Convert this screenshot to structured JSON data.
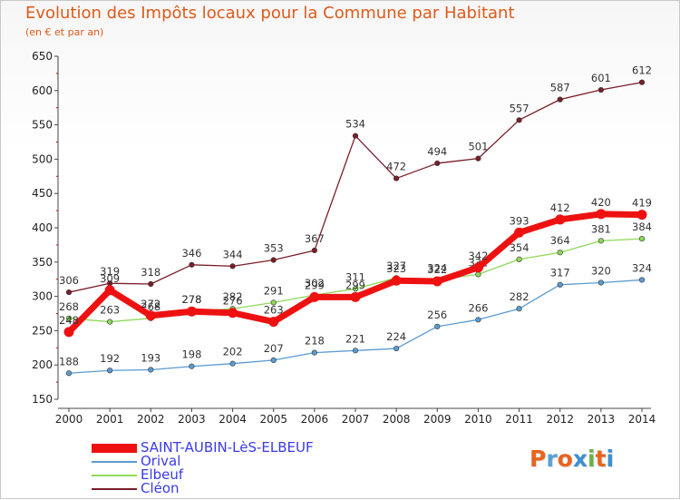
{
  "title": "Evolution des Impôts locaux pour la Commune par Habitant",
  "subtitle": "(en € et par an)",
  "logo": {
    "text": "Proxiti",
    "colors": [
      "#e8641e",
      "#5aa0d8",
      "#e8641e",
      "#3c8fd0",
      "#6ab04c",
      "#e8641e",
      "#3c8fd0"
    ]
  },
  "chart_data": {
    "type": "line",
    "title": "Evolution des Impôts locaux pour la Commune par Habitant",
    "subtitle": "(en € et par an)",
    "x": [
      "2000",
      "2001",
      "2002",
      "2003",
      "2004",
      "2005",
      "2006",
      "2007",
      "2008",
      "2009",
      "2010",
      "2011",
      "2012",
      "2013",
      "2014"
    ],
    "ylim": [
      150,
      650
    ],
    "yticks": [
      "150",
      "200",
      "250",
      "300",
      "350",
      "400",
      "450",
      "500",
      "550",
      "600",
      "650"
    ],
    "grid": false,
    "legend_position": "bottom-left",
    "series": [
      {
        "name": "Cléon",
        "color": "#7a1e28",
        "width": 1.3,
        "marker": 2.8,
        "values": [
          306,
          319,
          318,
          346,
          344,
          353,
          367,
          534,
          472,
          494,
          501,
          557,
          587,
          601,
          612
        ]
      },
      {
        "name": "Orival",
        "color": "#5b9bd0",
        "width": 1.3,
        "marker": 2.8,
        "values": [
          188,
          192,
          193,
          198,
          202,
          207,
          218,
          221,
          224,
          256,
          266,
          282,
          317,
          320,
          324
        ]
      },
      {
        "name": "Elbeuf",
        "color": "#8ed85a",
        "width": 1.3,
        "marker": 2.8,
        "values": [
          268,
          263,
          268,
          278,
          282,
          291,
          302,
          311,
          327,
          324,
          332,
          354,
          364,
          381,
          384
        ]
      },
      {
        "name": "SAINT-AUBIN-LèS-ELBEUF",
        "color": "#ee1111",
        "width": 7,
        "marker": 5.5,
        "values": [
          248,
          309,
          272,
          278,
          276,
          263,
          299,
          299,
          323,
          322,
          342,
          393,
          412,
          420,
          419
        ]
      }
    ]
  },
  "legend": [
    {
      "label": "SAINT-AUBIN-LèS-ELBEUF",
      "color": "#ee1111",
      "thickness": 10
    },
    {
      "label": "Orival",
      "color": "#5b9bd0",
      "thickness": 2
    },
    {
      "label": "Elbeuf",
      "color": "#8ed85a",
      "thickness": 2
    },
    {
      "label": "Cléon",
      "color": "#7a1e28",
      "thickness": 2
    }
  ]
}
